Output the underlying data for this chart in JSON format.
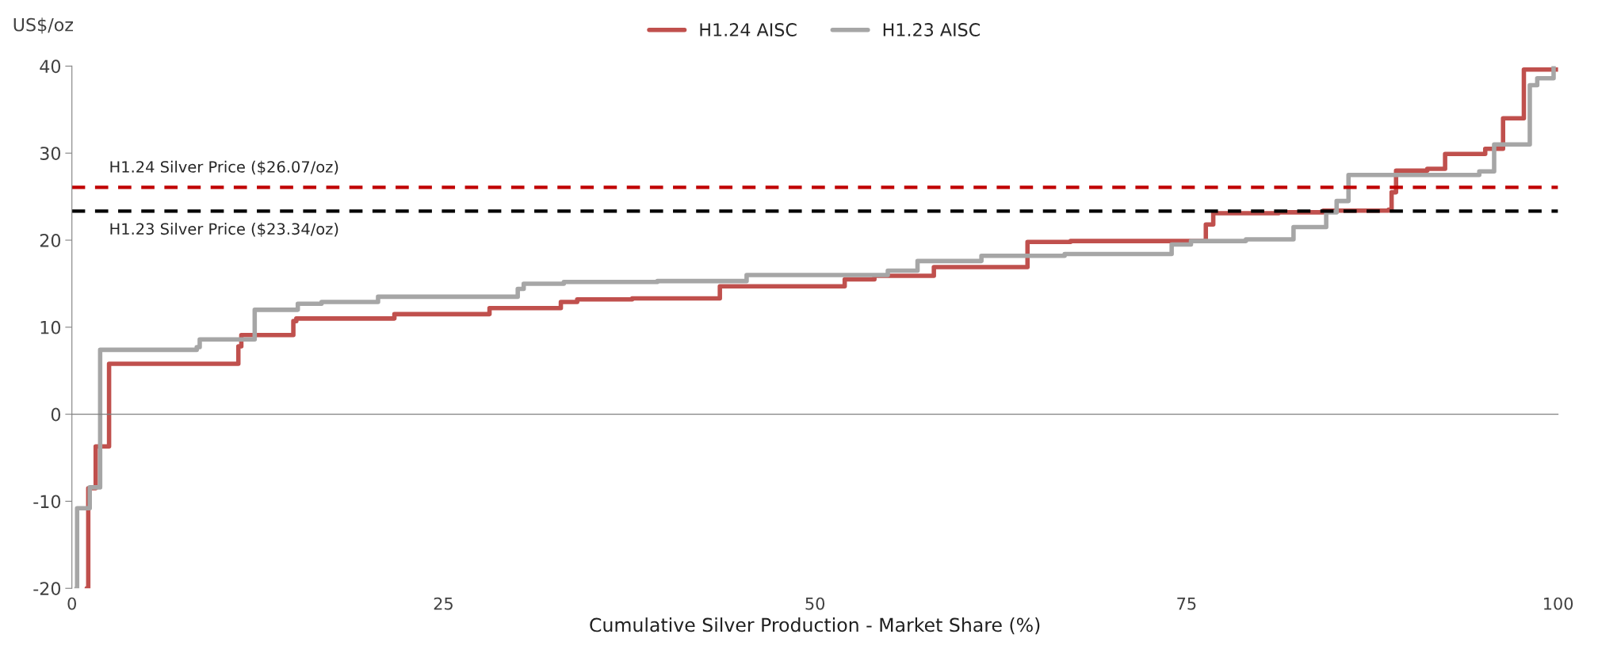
{
  "chart_data": {
    "type": "step",
    "ylabel": "US$/oz",
    "xlabel": "Cumulative Silver Production - Market Share (%)",
    "series": [
      {
        "name": "H1.24 AISC",
        "color": "#c0504d",
        "x": [
          1.0,
          1.1,
          1.6,
          2.5,
          11.2,
          11.4,
          14.9,
          15.1,
          21.7,
          28.1,
          32.9,
          34.0,
          37.7,
          43.6,
          52.0,
          54.0,
          58.0,
          64.3,
          67.2,
          76.3,
          76.8,
          81.2,
          84.2,
          88.6,
          88.8,
          89.1,
          91.2,
          92.4,
          95.1,
          96.3,
          97.7,
          100
        ],
        "values": [
          -20,
          -8.5,
          -3.7,
          5.8,
          7.8,
          9.1,
          10.7,
          11.0,
          11.5,
          12.2,
          12.9,
          13.2,
          13.3,
          14.7,
          15.5,
          15.9,
          16.9,
          19.8,
          19.9,
          21.8,
          23.1,
          23.2,
          23.4,
          23.5,
          25.5,
          28.0,
          28.2,
          29.9,
          30.5,
          34.0,
          39.6,
          39.6
        ]
      },
      {
        "name": "H1.23 AISC",
        "color": "#a6a6a6",
        "x": [
          0.3,
          0.35,
          1.2,
          1.9,
          8.4,
          8.6,
          12.3,
          15.2,
          16.8,
          20.6,
          30.0,
          30.4,
          33.1,
          39.4,
          45.4,
          54.9,
          56.9,
          61.2,
          66.8,
          74.0,
          75.3,
          79.0,
          82.2,
          84.4,
          85.1,
          85.9,
          94.7,
          95.7,
          98.1,
          98.6,
          99.7
        ],
        "values": [
          -20,
          -10.8,
          -8.4,
          7.4,
          7.7,
          8.6,
          12.0,
          12.7,
          12.9,
          13.5,
          14.4,
          15.0,
          15.2,
          15.3,
          16.0,
          16.5,
          17.6,
          18.2,
          18.4,
          19.5,
          19.9,
          20.1,
          21.5,
          23.2,
          24.5,
          27.5,
          27.9,
          31.0,
          37.8,
          38.6,
          40.0
        ]
      }
    ],
    "ref_lines": [
      {
        "axis": "y",
        "value": 26.07,
        "label": "H1.24 Silver Price ($26.07/oz)",
        "color": "#c00000",
        "line_style": "dashed"
      },
      {
        "axis": "y",
        "value": 23.34,
        "label": "H1.23 Silver Price ($23.34/oz)",
        "color": "#000000",
        "line_style": "dashed"
      }
    ],
    "xlim": [
      0,
      100
    ],
    "xticks": [
      0,
      25,
      50,
      75,
      100
    ],
    "ylim": [
      -20,
      40
    ],
    "yticks": [
      -20,
      -10,
      0,
      10,
      20,
      30,
      40
    ],
    "legend": "top",
    "line_style": "solid",
    "marker": "none"
  }
}
